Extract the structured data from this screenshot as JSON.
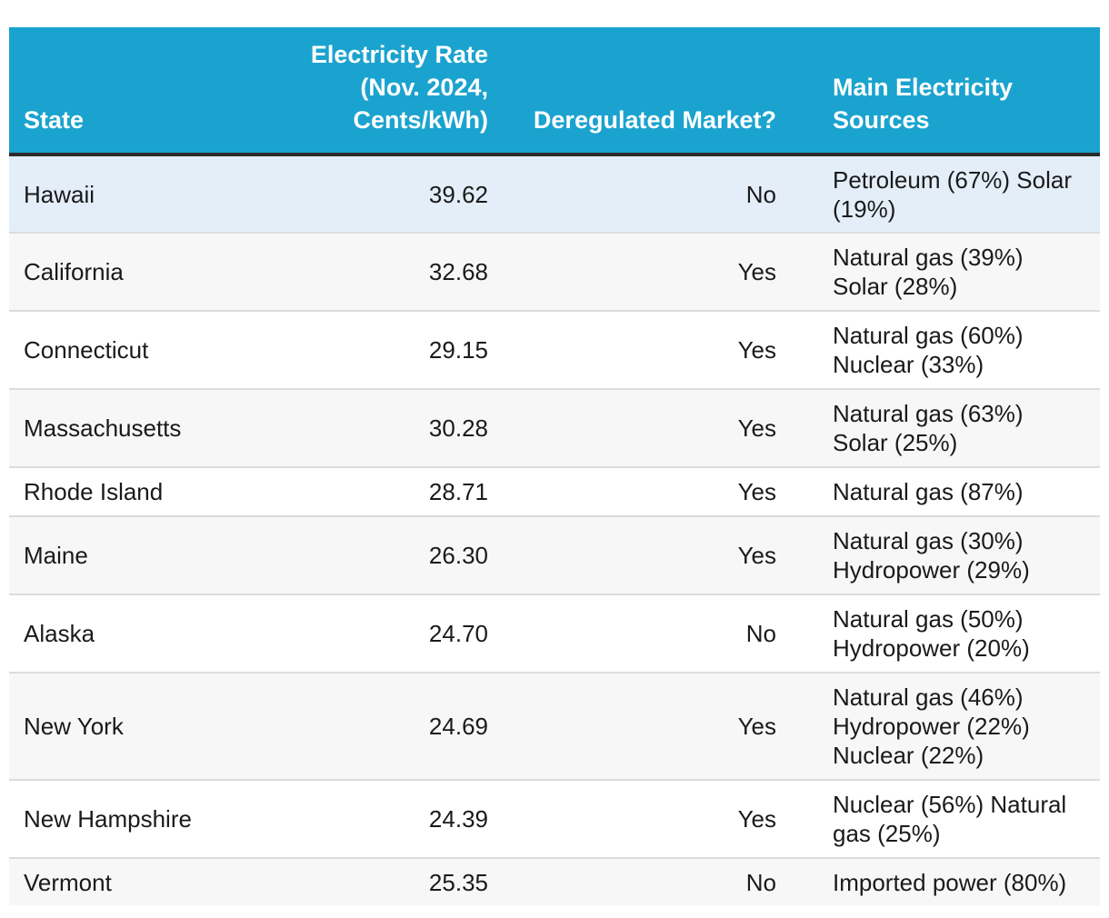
{
  "table": {
    "headers": {
      "state": "State",
      "rate": "Electricity Rate (Nov. 2024, Cents/kWh)",
      "deregulated": "Deregulated Market?",
      "sources": "Main Electricity Sources"
    },
    "rows": [
      {
        "state": "Hawaii",
        "rate": "39.62",
        "deregulated": "No",
        "sources": "Petroleum (67%) Solar (19%)"
      },
      {
        "state": "California",
        "rate": "32.68",
        "deregulated": "Yes",
        "sources": "Natural gas (39%) Solar (28%)"
      },
      {
        "state": "Connecticut",
        "rate": "29.15",
        "deregulated": "Yes",
        "sources": "Natural gas (60%) Nuclear (33%)"
      },
      {
        "state": "Massachusetts",
        "rate": "30.28",
        "deregulated": "Yes",
        "sources": "Natural gas (63%) Solar (25%)"
      },
      {
        "state": "Rhode Island",
        "rate": "28.71",
        "deregulated": "Yes",
        "sources": "Natural gas (87%)"
      },
      {
        "state": "Maine",
        "rate": "26.30",
        "deregulated": "Yes",
        "sources": "Natural gas (30%) Hydropower (29%)"
      },
      {
        "state": "Alaska",
        "rate": "24.70",
        "deregulated": "No",
        "sources": "Natural gas (50%) Hydropower (20%)"
      },
      {
        "state": "New York",
        "rate": "24.69",
        "deregulated": "Yes",
        "sources": "Natural gas (46%) Hydropower (22%) Nuclear (22%)"
      },
      {
        "state": "New Hampshire",
        "rate": "24.39",
        "deregulated": "Yes",
        "sources": "Nuclear (56%) Natural gas (25%)"
      },
      {
        "state": "Vermont",
        "rate": "25.35",
        "deregulated": "No",
        "sources": "Imported power (80%)"
      }
    ]
  },
  "colors": {
    "header_bg": "#1aa3cf",
    "header_text": "#ffffff",
    "highlight_row": "#e3eef9",
    "stripe_row": "#f7f7f7"
  }
}
